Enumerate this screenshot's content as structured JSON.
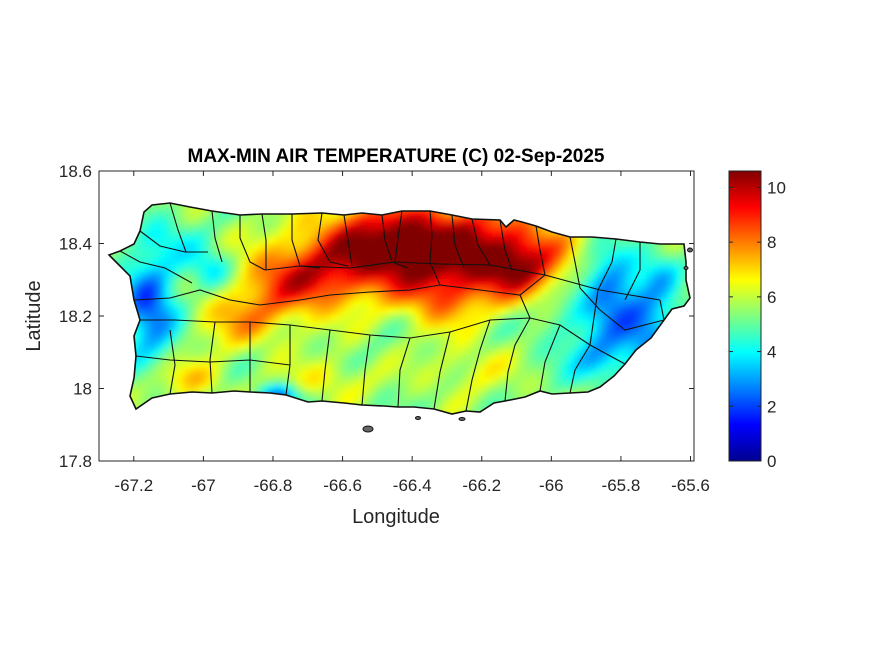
{
  "chart_data": {
    "type": "heatmap",
    "title": "MAX-MIN AIR TEMPERATURE (C) 02-Sep-2025",
    "xlabel": "Longitude",
    "ylabel": "Latitude",
    "xlim": [
      -67.3,
      -65.59
    ],
    "ylim": [
      17.8,
      18.6
    ],
    "x_ticks": [
      -67.2,
      -67,
      -66.8,
      -66.6,
      -66.4,
      -66.2,
      -66,
      -65.8,
      -65.6
    ],
    "y_ticks": [
      17.8,
      18,
      18.2,
      18.4,
      18.6
    ],
    "x_tick_labels": [
      "-67.2",
      "-67",
      "-66.8",
      "-66.6",
      "-66.4",
      "-66.2",
      "-66",
      "-65.8",
      "-65.6"
    ],
    "y_tick_labels": [
      "17.8",
      "18",
      "18.2",
      "18.4",
      "18.6"
    ],
    "colorbar": {
      "colormap": "jet",
      "range": [
        0,
        10.6
      ],
      "ticks": [
        0,
        2,
        4,
        6,
        8,
        10
      ],
      "tick_labels": [
        "0",
        "2",
        "4",
        "6",
        "8",
        "10"
      ]
    },
    "region": "Puerto Rico (municipality boundaries)",
    "grid": false
  }
}
